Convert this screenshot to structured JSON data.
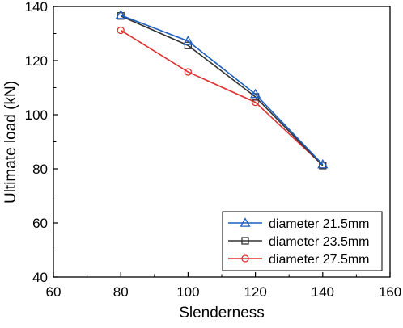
{
  "chart_data": {
    "type": "line",
    "title": "",
    "xlabel": "Slenderness",
    "ylabel": "Ultimate load (kN)",
    "xlim": [
      60,
      160
    ],
    "ylim": [
      40,
      140
    ],
    "x_ticks": [
      60,
      80,
      100,
      120,
      140,
      160
    ],
    "y_ticks": [
      40,
      60,
      80,
      100,
      120,
      140
    ],
    "grid": false,
    "legend_position": "bottom-right",
    "x": [
      80,
      100,
      120,
      140
    ],
    "series": [
      {
        "name": "diameter 21.5mm",
        "values": [
          136.8,
          127.2,
          107.6,
          81.6
        ],
        "color": "#1f5fbf",
        "marker": "triangle"
      },
      {
        "name": "diameter 23.5mm",
        "values": [
          136.5,
          125.6,
          106.6,
          81.2
        ],
        "color": "#333333",
        "marker": "square"
      },
      {
        "name": "diameter 27.5mm",
        "values": [
          131.2,
          115.8,
          104.6,
          81.3
        ],
        "color": "#e03030",
        "marker": "circle"
      }
    ]
  }
}
